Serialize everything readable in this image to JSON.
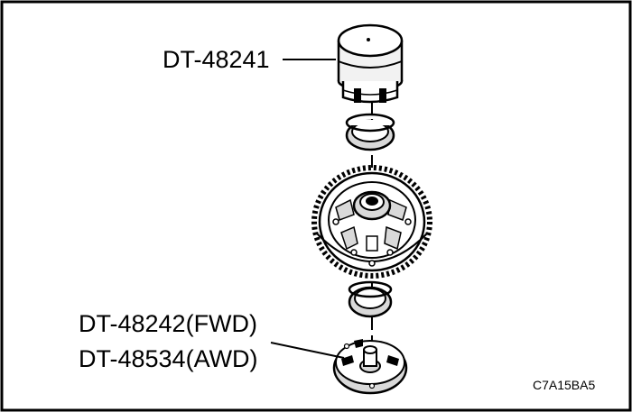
{
  "labels": {
    "installer_top": "DT-48241",
    "installer_bottom_fwd": "DT-48242(FWD)",
    "installer_bottom_awd": "DT-48534(AWD)",
    "figure_code": "C7A15BA5"
  },
  "colors": {
    "ink": "#000000",
    "paper": "#ffffff",
    "shade": "#d9d9d9",
    "light": "#f2f2f2"
  }
}
